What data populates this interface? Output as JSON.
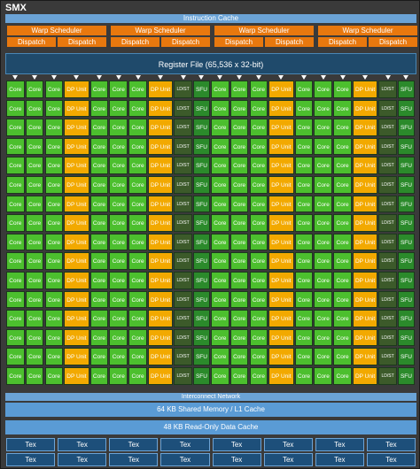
{
  "title": "SMX",
  "instruction_cache": "Instruction Cache",
  "warp_scheduler": "Warp Scheduler",
  "dispatch": "Dispatch",
  "register_file": "Register File (65,536 x 32-bit)",
  "cell_labels": {
    "core": "Core",
    "dp": "DP Unit",
    "ldst": "LD/ST",
    "sfu": "SFU"
  },
  "column_pattern": [
    "core",
    "core",
    "core",
    "dp",
    "core",
    "core",
    "core",
    "dp",
    "ldst",
    "sfu",
    "core",
    "core",
    "core",
    "dp",
    "core",
    "core",
    "core",
    "dp",
    "ldst",
    "sfu"
  ],
  "interconnect": "Interconnect Network",
  "shared_memory": "64 KB Shared Memory / L1 Cache",
  "readonly_cache": "48 KB Read-Only Data Cache",
  "tex_label": "Tex",
  "colors": {
    "core": "#4cbf2e",
    "dp_unit": "#f2a900",
    "ldst": "#3c5a2a",
    "sfu": "#2b8a2b",
    "scheduler": "#e8780e",
    "register_file": "#1f4a6b",
    "cache": "#5a9bd5"
  }
}
